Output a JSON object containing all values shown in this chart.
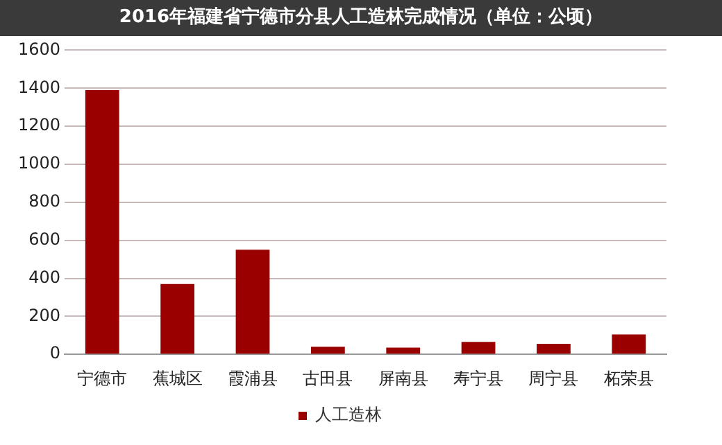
{
  "chart_data": {
    "type": "bar",
    "title": "2016年福建省宁德市分县人工造林完成情况（单位：公顷）",
    "categories": [
      "宁德市",
      "蕉城区",
      "霞浦县",
      "古田县",
      "屏南县",
      "寿宁县",
      "周宁县",
      "柘荣县"
    ],
    "series": [
      {
        "name": "人工造林",
        "color": "#9b0000",
        "values": [
          1390,
          370,
          550,
          40,
          35,
          65,
          55,
          105
        ]
      }
    ],
    "ylim": [
      0,
      1600
    ],
    "yticks": [
      0,
      200,
      400,
      600,
      800,
      1000,
      1200,
      1400,
      1600
    ],
    "grid": "y",
    "legend": "bottom"
  }
}
